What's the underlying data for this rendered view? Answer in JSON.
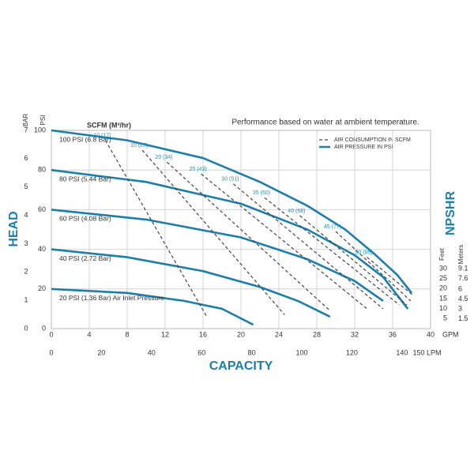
{
  "chart_data": {
    "type": "line",
    "title": "Performance based on water at ambient temperature.",
    "scfm_label": "SCFM (M³/hr)",
    "ylabel": "HEAD",
    "xlabel": "CAPACITY",
    "y3label": "NPSHR",
    "y_unit": "PSI",
    "y2_unit": "BAR",
    "x_unit": "GPM",
    "feet_unit": "Feet",
    "meters_unit": "Meters",
    "legend": {
      "dashed": "AIR CONSUMPTION IN SCFM",
      "solid": "AIR PRESSURE IN PSI"
    },
    "xlim": [
      0,
      40
    ],
    "xticks": [
      0,
      4,
      8,
      12,
      16,
      20,
      24,
      28,
      32,
      36,
      40
    ],
    "lpm_lim": [
      0,
      151.4
    ],
    "lpm_ticks": [
      0,
      20,
      40,
      60,
      80,
      100,
      120,
      140,
      {
        "value": 150,
        "label": "150 LPM"
      }
    ],
    "ylim": [
      0,
      100
    ],
    "yticks": [
      0,
      20,
      40,
      60,
      80,
      100
    ],
    "y2lim": [
      0,
      7
    ],
    "y2ticks": [
      0,
      1,
      2,
      3,
      4,
      5,
      6,
      7
    ],
    "feet_lim": [
      0,
      30
    ],
    "feet_ticks": [
      5,
      10,
      15,
      20,
      25,
      30
    ],
    "meters_lim": [
      0,
      9.1
    ],
    "meters_ticks": [
      1.5,
      3,
      4.5,
      6,
      7.6,
      9.1
    ],
    "grid": true,
    "series": [
      {
        "name": "100 PSI (6.8 Bar)",
        "style": "solid",
        "color": "#1b7fab",
        "x": [
          0,
          8,
          16,
          22,
          27,
          31,
          34,
          36.5,
          38
        ],
        "values": [
          100,
          95,
          86,
          74,
          62,
          50,
          38,
          27,
          18
        ]
      },
      {
        "name": "80 PSI (5.44 Bar)",
        "style": "solid",
        "color": "#1b7fab",
        "x": [
          0,
          10,
          20,
          27,
          32,
          35,
          37.6
        ],
        "values": [
          80,
          74,
          63,
          50,
          37,
          26,
          10
        ]
      },
      {
        "name": "60 PSI (4.08 Bar)",
        "style": "solid",
        "color": "#1b7fab",
        "x": [
          0,
          10,
          20,
          27,
          32,
          35
        ],
        "values": [
          60,
          55,
          46,
          35,
          24,
          14
        ]
      },
      {
        "name": "40 PSI (2.72 Bar)",
        "style": "solid",
        "color": "#1b7fab",
        "x": [
          0,
          8,
          16,
          22,
          26,
          29.4
        ],
        "values": [
          40,
          36,
          29,
          21,
          14,
          6
        ]
      },
      {
        "name": "20 PSI (1.36 Bar) Air Inlet Pressure",
        "style": "solid",
        "color": "#1b7fab",
        "x": [
          0,
          8,
          14,
          18,
          21.3
        ],
        "values": [
          20,
          18,
          14,
          10,
          2
        ]
      },
      {
        "name": "10 (17)",
        "style": "dashed",
        "color": "#444444",
        "x": [
          5.7,
          16.4
        ],
        "values": [
          95,
          6
        ]
      },
      {
        "name": "15 (25)",
        "style": "dashed",
        "color": "#444444",
        "x": [
          9.6,
          24.6
        ],
        "values": [
          90,
          7
        ]
      },
      {
        "name": "20 (34)",
        "style": "dashed",
        "color": "#444444",
        "x": [
          12.2,
          29.4
        ],
        "values": [
          84,
          9
        ]
      },
      {
        "name": "25 (43)",
        "style": "dashed",
        "color": "#444444",
        "x": [
          15.8,
          33.3
        ],
        "values": [
          78,
          10
        ]
      },
      {
        "name": "30 (51)",
        "style": "dashed",
        "color": "#444444",
        "x": [
          19.2,
          35
        ],
        "values": [
          73,
          10
        ]
      },
      {
        "name": "35 (60)",
        "style": "dashed",
        "color": "#444444",
        "x": [
          22.5,
          36.7
        ],
        "values": [
          66,
          12
        ]
      },
      {
        "name": "40 (68)",
        "style": "dashed",
        "color": "#444444",
        "x": [
          26.2,
          37.5
        ],
        "values": [
          57,
          12
        ]
      },
      {
        "name": "45 (77)",
        "style": "dashed",
        "color": "#444444",
        "x": [
          30,
          37.9
        ],
        "values": [
          49,
          14
        ]
      },
      {
        "name": "50 (85)",
        "style": "dashed",
        "color": "#444444",
        "x": [
          33.3,
          38.1
        ],
        "values": [
          36,
          17
        ]
      }
    ]
  }
}
